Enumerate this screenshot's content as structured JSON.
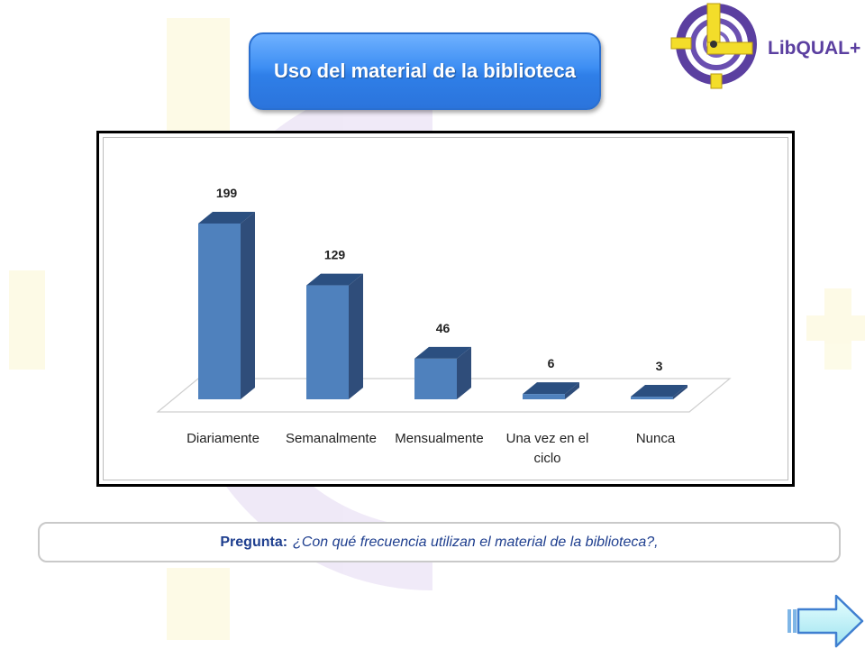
{
  "title": "Uso del material de la biblioteca",
  "logo": {
    "text": "LibQUAL+",
    "name": "libqual-logo"
  },
  "question": {
    "label": "Pregunta:",
    "text": "¿Con qué frecuencia utilizan el material de la biblioteca?,"
  },
  "navigation": {
    "next_icon": "next-arrow-icon"
  },
  "colors": {
    "bar_front": "#4f81bd",
    "bar_side": "#2f4d7a",
    "bar_top": "#2b4f80",
    "title_bg": "#3d8ef3",
    "question_text": "#1f3f8f"
  },
  "chart_data": {
    "type": "bar",
    "title": "",
    "xlabel": "",
    "ylabel": "",
    "style": "3d-column",
    "categories": [
      "Diariamente",
      "Semanalmente",
      "Mensualmente",
      "Una vez en el ciclo",
      "Nunca"
    ],
    "category_lines": [
      [
        "Diariamente"
      ],
      [
        "Semanalmente"
      ],
      [
        "Mensualmente"
      ],
      [
        "Una vez en el",
        "ciclo"
      ],
      [
        "Nunca"
      ]
    ],
    "values": [
      199,
      129,
      46,
      6,
      3
    ],
    "data_labels": [
      "199",
      "129",
      "46",
      "6",
      "3"
    ],
    "ylim": [
      0,
      200
    ],
    "grid": false,
    "legend": "none"
  }
}
